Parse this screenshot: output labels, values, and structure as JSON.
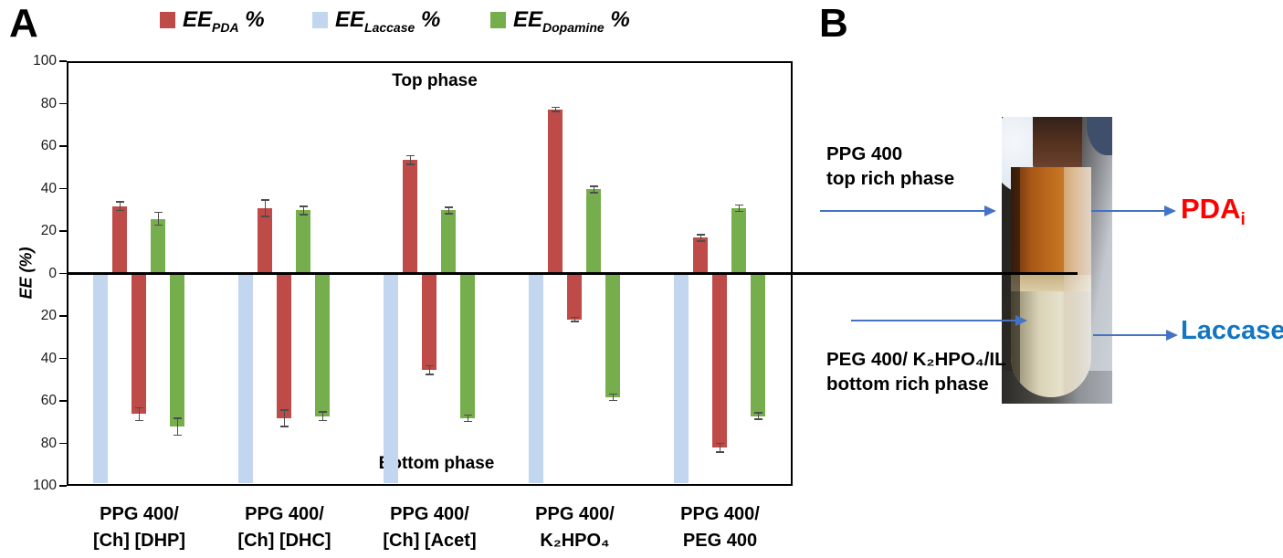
{
  "panel_a": {
    "label": "A",
    "chart_data": {
      "type": "bar",
      "diverging": true,
      "ylabel": "EE (%)",
      "ylim": [
        -100,
        100
      ],
      "y_axis_ticks": [
        "100",
        "80",
        "60",
        "40",
        "20",
        "0",
        "20",
        "40",
        "60",
        "80",
        "100"
      ],
      "top_region_label": "Top phase",
      "bottom_region_label": "Bottom phase",
      "grid": false,
      "legend_position": "top",
      "legend": [
        {
          "prefix": "EE",
          "sub": "PDA",
          "suffix": " %",
          "color": "#BE4B48"
        },
        {
          "prefix": "EE",
          "sub": "Laccase",
          "suffix": " %",
          "color": "#C3D6EF"
        },
        {
          "prefix": "EE",
          "sub": "Dopamine",
          "suffix": " %",
          "color": "#77AE4D"
        }
      ],
      "categories": [
        [
          "PPG 400/",
          "[Ch] [DHP]"
        ],
        [
          "PPG 400/",
          "[Ch] [DHC]"
        ],
        [
          "PPG 400/",
          "[Ch] [Acet]"
        ],
        [
          "PPG 400/",
          "K₂HPO₄"
        ],
        [
          "PPG 400/",
          "PEG 400"
        ]
      ],
      "series": [
        {
          "name": "EE_Laccase % (bottom phase)",
          "color": "#C3D6EF",
          "phase": "bottom",
          "values": [
            100,
            100,
            100,
            100,
            100
          ],
          "errors": [
            0,
            0,
            0,
            0,
            0
          ]
        },
        {
          "name": "EE_PDA % (top phase)",
          "color": "#BE4B48",
          "phase": "top",
          "values": [
            32,
            31,
            54,
            78,
            17
          ],
          "errors": [
            2,
            4,
            2,
            1,
            1.5
          ]
        },
        {
          "name": "EE_PDA % (bottom phase)",
          "color": "#BE4B48",
          "phase": "bottom",
          "values": [
            67,
            69,
            46,
            22,
            83
          ],
          "errors": [
            3,
            4,
            2,
            1,
            2
          ]
        },
        {
          "name": "EE_Dopamine % (top phase)",
          "color": "#77AE4D",
          "phase": "top",
          "values": [
            26,
            30,
            30,
            40,
            31
          ],
          "errors": [
            3,
            2,
            1.5,
            1.5,
            1.5
          ]
        },
        {
          "name": "EE_Dopamine % (bottom phase)",
          "color": "#77AE4D",
          "phase": "bottom",
          "values": [
            73,
            68,
            69,
            59,
            68
          ],
          "errors": [
            4,
            2,
            1.5,
            1.5,
            1.5
          ]
        }
      ],
      "error_bar_color": "#4D4D4D"
    }
  },
  "panel_b": {
    "label": "B",
    "top_note_line1": "PPG 400",
    "top_note_line2": "top rich phase",
    "bottom_note_line1": "PEG 400/ K₂HPO₄/IL",
    "bottom_note_line2": "bottom rich phase",
    "pda_main": "PDA",
    "pda_sub": "i",
    "pda_color": "#FF0000",
    "laccase_label": "Laccase",
    "laccase_color": "#1276C3",
    "arrow_color": "#4472C4"
  }
}
